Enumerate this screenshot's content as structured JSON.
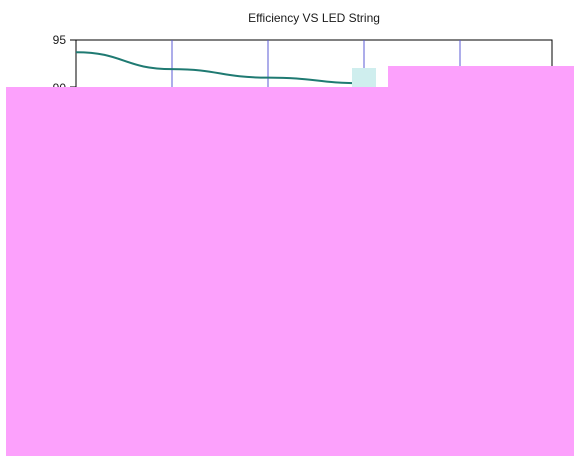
{
  "chart_data": {
    "type": "line",
    "title": "Efficiency VS LED String",
    "xlabel": "",
    "ylabel": "",
    "ylim": [
      80,
      95
    ],
    "y_ticks": [
      "95",
      "90"
    ],
    "grid": true,
    "series": [
      {
        "x": [
          0,
          1,
          2,
          3,
          3.1
        ],
        "values": [
          93.7,
          91.9,
          91.0,
          90.4,
          90.3
        ]
      }
    ],
    "colors": {
      "series_line": "#1f7a72",
      "grid": "#5b5bd6",
      "occlusion": "#fca1fc"
    }
  }
}
